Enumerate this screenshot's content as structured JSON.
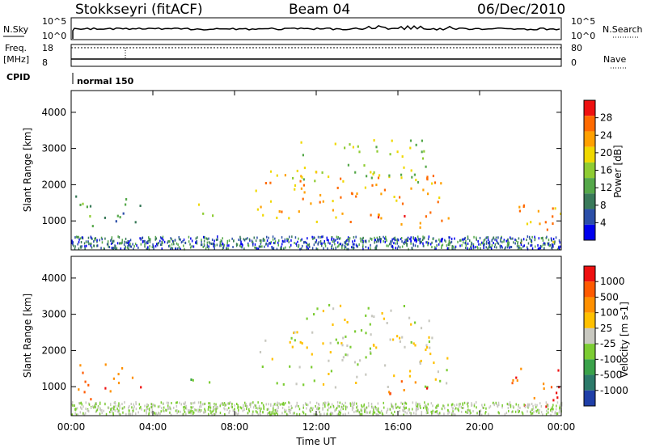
{
  "header": {
    "station": "Stokkseyri (fitACF)",
    "beam": "Beam 04",
    "date": "06/Dec/2010"
  },
  "strip": {
    "nsky_label": "N.Sky",
    "nsky_ticks": [
      "10^5",
      "10^0"
    ],
    "nsearch_label": "N.Search",
    "nsearch_ticks": [
      "10^5",
      "10^0"
    ],
    "freq_label_1": "Freq.",
    "freq_label_2": "[MHz]",
    "freq_ticks": [
      "18",
      "8"
    ],
    "nave_label": "Nave",
    "nave_ticks": [
      "80",
      "0"
    ],
    "cpid_label": "CPID",
    "cpid_value": "normal 150"
  },
  "chart_data": [
    {
      "type": "heatmap",
      "name": "power",
      "ylabel": "Slant Range [km]",
      "yticks": [
        "1000",
        "2000",
        "3000",
        "4000"
      ],
      "ylim": [
        200,
        4600
      ],
      "xlim": [
        0,
        24
      ],
      "colorbar_label": "Power [dB]",
      "colorbar_ticks": [
        "4",
        "8",
        "12",
        "16",
        "20",
        "24",
        "28"
      ],
      "colors": [
        "#0000ee",
        "#2c4fa8",
        "#3a7a5a",
        "#55a84a",
        "#8fcc33",
        "#f0d800",
        "#ffa000",
        "#ff6a00",
        "#ee1010"
      ],
      "regions": [
        {
          "t": [
            0.2,
            1.2
          ],
          "r": [
            600,
            1800
          ],
          "level": 3
        },
        {
          "t": [
            1.5,
            3.5
          ],
          "r": [
            900,
            1700
          ],
          "level": 2
        },
        {
          "t": [
            5.8,
            7.0
          ],
          "r": [
            1150,
            1650
          ],
          "level": 4
        },
        {
          "t": [
            9.0,
            18.5
          ],
          "r": [
            1000,
            2400
          ],
          "level": 6
        },
        {
          "t": [
            10.5,
            17.5
          ],
          "r": [
            2100,
            3300
          ],
          "level": 4
        },
        {
          "t": [
            15.0,
            18.2
          ],
          "r": [
            800,
            1200
          ],
          "level": 7
        },
        {
          "t": [
            21.5,
            24.0
          ],
          "r": [
            400,
            1600
          ],
          "level": 6
        }
      ]
    },
    {
      "type": "heatmap",
      "name": "velocity",
      "ylabel": "Slant Range [km]",
      "yticks": [
        "1000",
        "2000",
        "3000",
        "4000"
      ],
      "ylim": [
        200,
        4600
      ],
      "xlim": [
        0,
        24
      ],
      "xticks": [
        "00:00",
        "04:00",
        "08:00",
        "12:00",
        "16:00",
        "20:00",
        "00:00"
      ],
      "xlabel": "Time UT",
      "colorbar_label": "Velocity [m s-1]",
      "colorbar_ticks": [
        "1000",
        "500",
        "100",
        "25",
        "-25",
        "-100",
        "-500",
        "-1000"
      ],
      "colors": [
        "#1f3fa8",
        "#2c7a6a",
        "#3aa24a",
        "#7ccc33",
        "#c8c8c0",
        "#ffc000",
        "#ff9000",
        "#ff5a00",
        "#ee1010"
      ],
      "regions": [
        {
          "t": [
            0.2,
            1.2
          ],
          "r": [
            600,
            1800
          ],
          "level": 6
        },
        {
          "t": [
            1.5,
            3.5
          ],
          "r": [
            900,
            1700
          ],
          "level": 7
        },
        {
          "t": [
            5.8,
            7.0
          ],
          "r": [
            1150,
            1650
          ],
          "level": 2
        },
        {
          "t": [
            9.0,
            18.5
          ],
          "r": [
            1000,
            2400
          ],
          "level": 4
        },
        {
          "t": [
            10.5,
            17.5
          ],
          "r": [
            2100,
            3300
          ],
          "level": 4
        },
        {
          "t": [
            15.0,
            18.2
          ],
          "r": [
            800,
            1200
          ],
          "level": 7
        },
        {
          "t": [
            21.5,
            24.0
          ],
          "r": [
            400,
            1600
          ],
          "level": 7
        }
      ]
    }
  ]
}
